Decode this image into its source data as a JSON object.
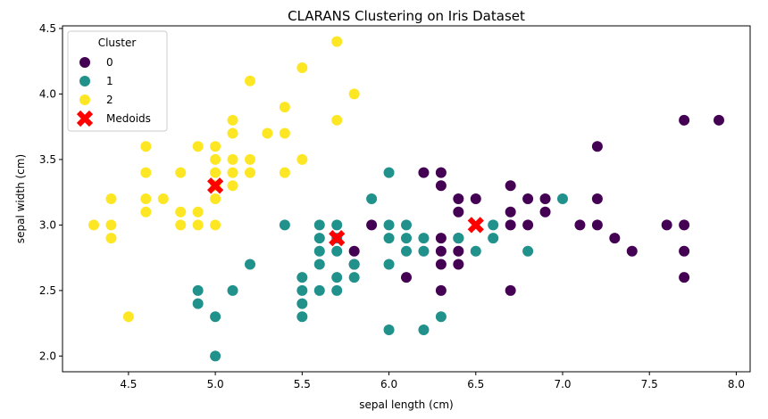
{
  "chart_data": {
    "type": "scatter",
    "title": "CLARANS Clustering on Iris Dataset",
    "xlabel": "sepal length (cm)",
    "ylabel": "sepal width (cm)",
    "xlim": [
      4.12,
      8.08
    ],
    "ylim": [
      1.88,
      4.52
    ],
    "xticks": [
      "4.5",
      "5.0",
      "5.5",
      "6.0",
      "6.5",
      "7.0",
      "7.5",
      "8.0"
    ],
    "yticks": [
      "2.0",
      "2.5",
      "3.0",
      "3.5",
      "4.0",
      "4.5"
    ],
    "grid": false,
    "legend": {
      "title": "Cluster",
      "placement": "top-left",
      "entries": [
        {
          "label": "0",
          "color": "#440154",
          "marker": "circle"
        },
        {
          "label": "1",
          "color": "#21918c",
          "marker": "circle"
        },
        {
          "label": "2",
          "color": "#fde725",
          "marker": "circle"
        },
        {
          "label": "Medoids",
          "color": "#ff0000",
          "marker": "x"
        }
      ]
    },
    "series": [
      {
        "name": "0",
        "color": "#440154",
        "points": [
          [
            7.7,
            3.8
          ],
          [
            7.9,
            3.8
          ],
          [
            7.2,
            3.6
          ],
          [
            6.2,
            3.4
          ],
          [
            6.3,
            3.4
          ],
          [
            6.3,
            3.3
          ],
          [
            6.7,
            3.3
          ],
          [
            6.4,
            3.2
          ],
          [
            6.5,
            3.2
          ],
          [
            6.8,
            3.2
          ],
          [
            6.9,
            3.2
          ],
          [
            7.2,
            3.2
          ],
          [
            6.4,
            3.1
          ],
          [
            6.7,
            3.1
          ],
          [
            6.9,
            3.1
          ],
          [
            5.9,
            3.0
          ],
          [
            6.7,
            3.0
          ],
          [
            6.8,
            3.0
          ],
          [
            7.1,
            3.0
          ],
          [
            7.2,
            3.0
          ],
          [
            7.6,
            3.0
          ],
          [
            7.7,
            3.0
          ],
          [
            6.3,
            2.9
          ],
          [
            6.4,
            2.9
          ],
          [
            7.3,
            2.9
          ],
          [
            5.8,
            2.8
          ],
          [
            6.3,
            2.8
          ],
          [
            6.4,
            2.8
          ],
          [
            7.4,
            2.8
          ],
          [
            7.7,
            2.8
          ],
          [
            5.8,
            2.7
          ],
          [
            6.3,
            2.7
          ],
          [
            6.4,
            2.7
          ],
          [
            6.1,
            2.6
          ],
          [
            7.7,
            2.6
          ],
          [
            6.3,
            2.5
          ],
          [
            6.7,
            2.5
          ]
        ]
      },
      {
        "name": "1",
        "color": "#21918c",
        "points": [
          [
            6.0,
            3.4
          ],
          [
            5.9,
            3.2
          ],
          [
            7.0,
            3.2
          ],
          [
            5.4,
            3.0
          ],
          [
            5.6,
            3.0
          ],
          [
            5.7,
            3.0
          ],
          [
            6.0,
            3.0
          ],
          [
            6.1,
            3.0
          ],
          [
            6.6,
            3.0
          ],
          [
            5.6,
            2.9
          ],
          [
            5.7,
            2.9
          ],
          [
            6.0,
            2.9
          ],
          [
            6.1,
            2.9
          ],
          [
            6.2,
            2.9
          ],
          [
            6.4,
            2.9
          ],
          [
            6.6,
            2.9
          ],
          [
            5.6,
            2.8
          ],
          [
            5.7,
            2.8
          ],
          [
            6.1,
            2.8
          ],
          [
            6.2,
            2.8
          ],
          [
            6.5,
            2.8
          ],
          [
            6.8,
            2.8
          ],
          [
            5.2,
            2.7
          ],
          [
            5.6,
            2.7
          ],
          [
            5.8,
            2.7
          ],
          [
            6.0,
            2.7
          ],
          [
            5.5,
            2.6
          ],
          [
            5.7,
            2.6
          ],
          [
            5.8,
            2.6
          ],
          [
            4.9,
            2.5
          ],
          [
            5.1,
            2.5
          ],
          [
            5.5,
            2.5
          ],
          [
            5.6,
            2.5
          ],
          [
            5.7,
            2.5
          ],
          [
            4.9,
            2.4
          ],
          [
            5.5,
            2.4
          ],
          [
            5.0,
            2.3
          ],
          [
            5.5,
            2.3
          ],
          [
            6.3,
            2.3
          ],
          [
            6.0,
            2.2
          ],
          [
            6.2,
            2.2
          ],
          [
            5.0,
            2.0
          ]
        ]
      },
      {
        "name": "2",
        "color": "#fde725",
        "points": [
          [
            5.7,
            4.4
          ],
          [
            5.5,
            4.2
          ],
          [
            5.2,
            4.1
          ],
          [
            5.8,
            4.0
          ],
          [
            5.4,
            3.9
          ],
          [
            5.1,
            3.8
          ],
          [
            5.7,
            3.8
          ],
          [
            5.1,
            3.7
          ],
          [
            5.3,
            3.7
          ],
          [
            5.4,
            3.7
          ],
          [
            4.6,
            3.6
          ],
          [
            4.9,
            3.6
          ],
          [
            5.0,
            3.6
          ],
          [
            5.0,
            3.5
          ],
          [
            5.1,
            3.5
          ],
          [
            5.2,
            3.5
          ],
          [
            5.5,
            3.5
          ],
          [
            4.6,
            3.4
          ],
          [
            4.8,
            3.4
          ],
          [
            5.0,
            3.4
          ],
          [
            5.1,
            3.4
          ],
          [
            5.2,
            3.4
          ],
          [
            5.4,
            3.4
          ],
          [
            5.0,
            3.3
          ],
          [
            5.1,
            3.3
          ],
          [
            4.4,
            3.2
          ],
          [
            4.6,
            3.2
          ],
          [
            4.7,
            3.2
          ],
          [
            5.0,
            3.2
          ],
          [
            4.6,
            3.1
          ],
          [
            4.8,
            3.1
          ],
          [
            4.9,
            3.1
          ],
          [
            4.3,
            3.0
          ],
          [
            4.4,
            3.0
          ],
          [
            4.8,
            3.0
          ],
          [
            4.9,
            3.0
          ],
          [
            5.0,
            3.0
          ],
          [
            4.4,
            2.9
          ],
          [
            4.5,
            2.3
          ]
        ]
      }
    ],
    "medoids": {
      "name": "Medoids",
      "color": "#ff0000",
      "points": [
        [
          5.0,
          3.3
        ],
        [
          5.7,
          2.9
        ],
        [
          6.5,
          3.0
        ]
      ]
    }
  }
}
